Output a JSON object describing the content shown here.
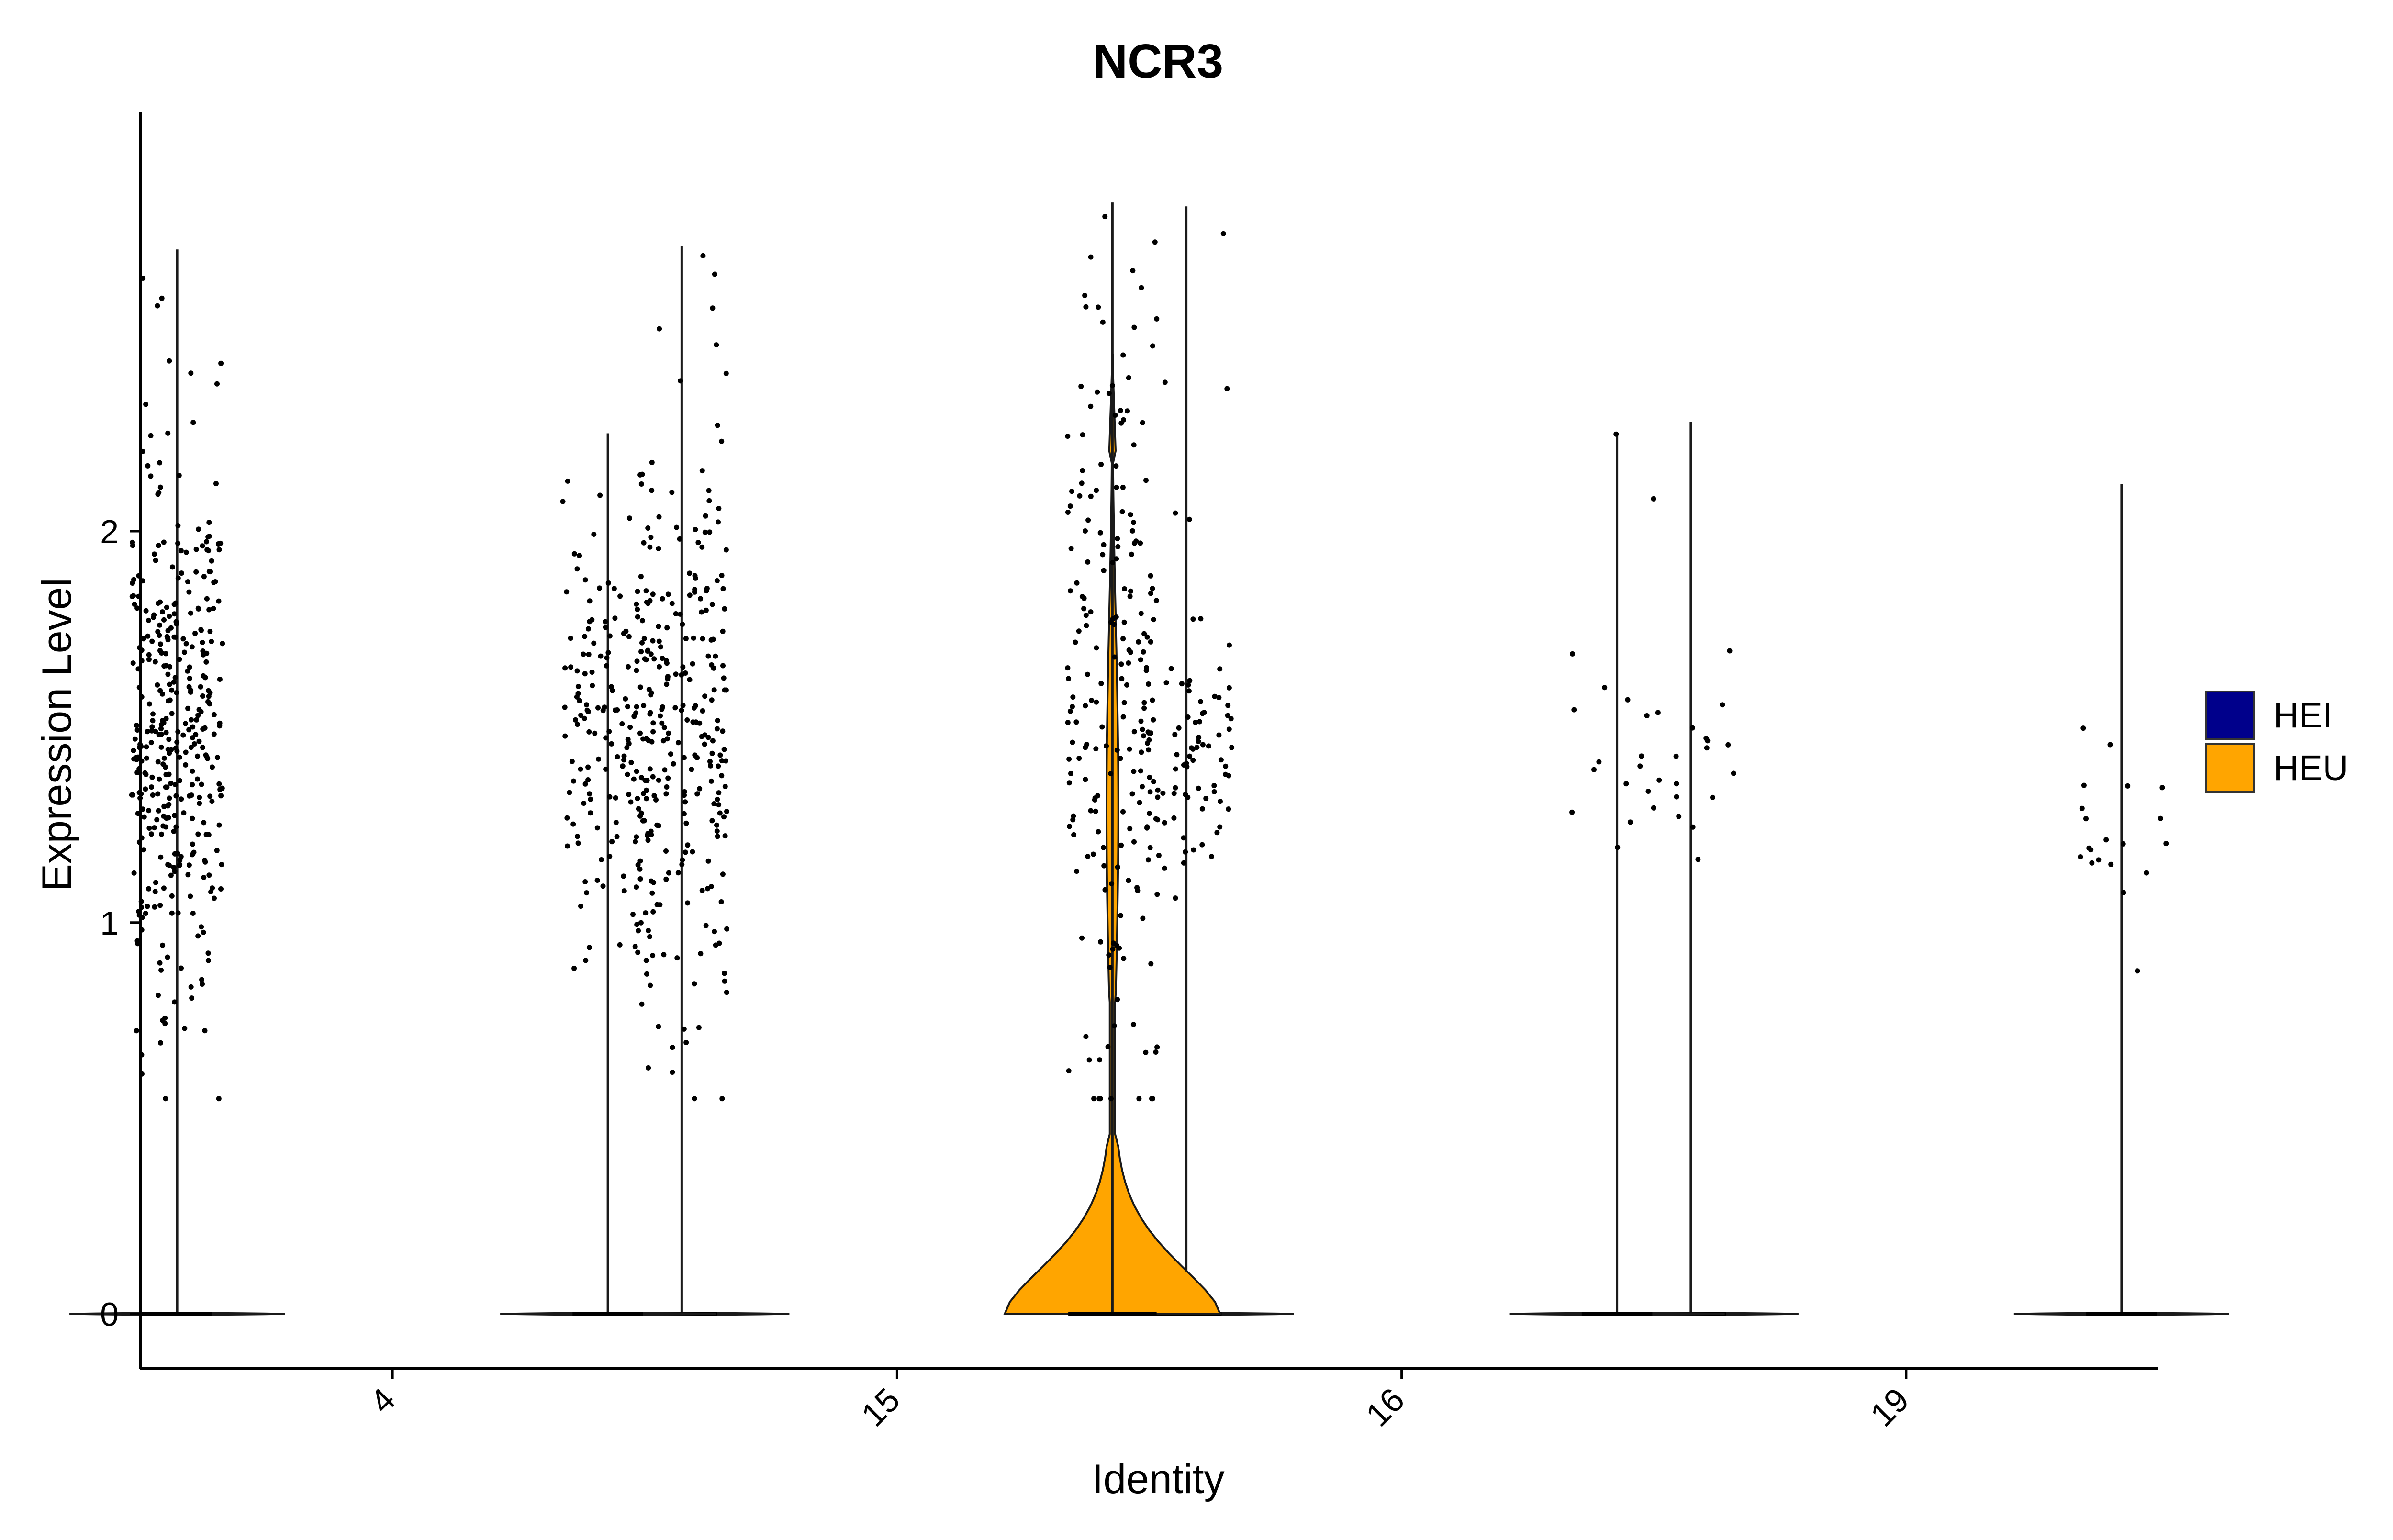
{
  "chart_data": {
    "type": "violin",
    "title": "NCR3",
    "xlabel": "Identity",
    "ylabel": "Expression Level",
    "categories": [
      "4",
      "15",
      "16",
      "19"
    ],
    "ylim": [
      -0.14,
      3.07
    ],
    "yticks": [
      0,
      1,
      2
    ],
    "grid": false,
    "legend": {
      "placement": "right",
      "entries": [
        {
          "label": "HEI",
          "color": "#00008B"
        },
        {
          "label": "HEU",
          "color": "#FFA500"
        }
      ]
    },
    "series": [
      {
        "name": "HEI",
        "color": "#00008B",
        "values": [
          {
            "category": "4",
            "max": 2.72,
            "zero_width": 0.4,
            "dense_ranges": [
              [
                0.9,
                2.0
              ]
            ],
            "n_nonzero": 380
          },
          {
            "category": "15",
            "max": 2.73,
            "zero_width": 0.4,
            "dense_ranges": [
              [
                0.9,
                2.0
              ]
            ],
            "n_nonzero": 240
          },
          {
            "category": "16",
            "max": 2.83,
            "zero_width": 0.4,
            "dense_ranges": [
              [
                1.2,
                1.7
              ]
            ],
            "n_nonzero": 95
          },
          {
            "category": "19",
            "max": 2.28,
            "zero_width": 0.4,
            "dense_ranges": [
              [
                1.2,
                1.6
              ]
            ],
            "n_nonzero": 18
          }
        ]
      },
      {
        "name": "HEU",
        "color": "#FFA500",
        "values": [
          {
            "category": "4",
            "max": 2.25,
            "zero_width": 0.4,
            "dense_ranges": [
              [
                1.0,
                1.9
              ]
            ],
            "n_nonzero": 170
          },
          {
            "category": "15",
            "max": 2.84,
            "zero_width": 0.5,
            "dense_ranges": [
              [
                0.7,
                2.3
              ]
            ],
            "n_nonzero": 200
          },
          {
            "category": "16",
            "max": 2.25,
            "zero_width": 0.4,
            "dense_ranges": [
              [
                1.2,
                1.7
              ]
            ],
            "n_nonzero": 16
          },
          {
            "category": "19",
            "max": 2.12,
            "zero_width": 0.4,
            "dense_ranges": [
              [
                1.0,
                1.5
              ]
            ],
            "n_nonzero": 20
          }
        ]
      }
    ]
  }
}
